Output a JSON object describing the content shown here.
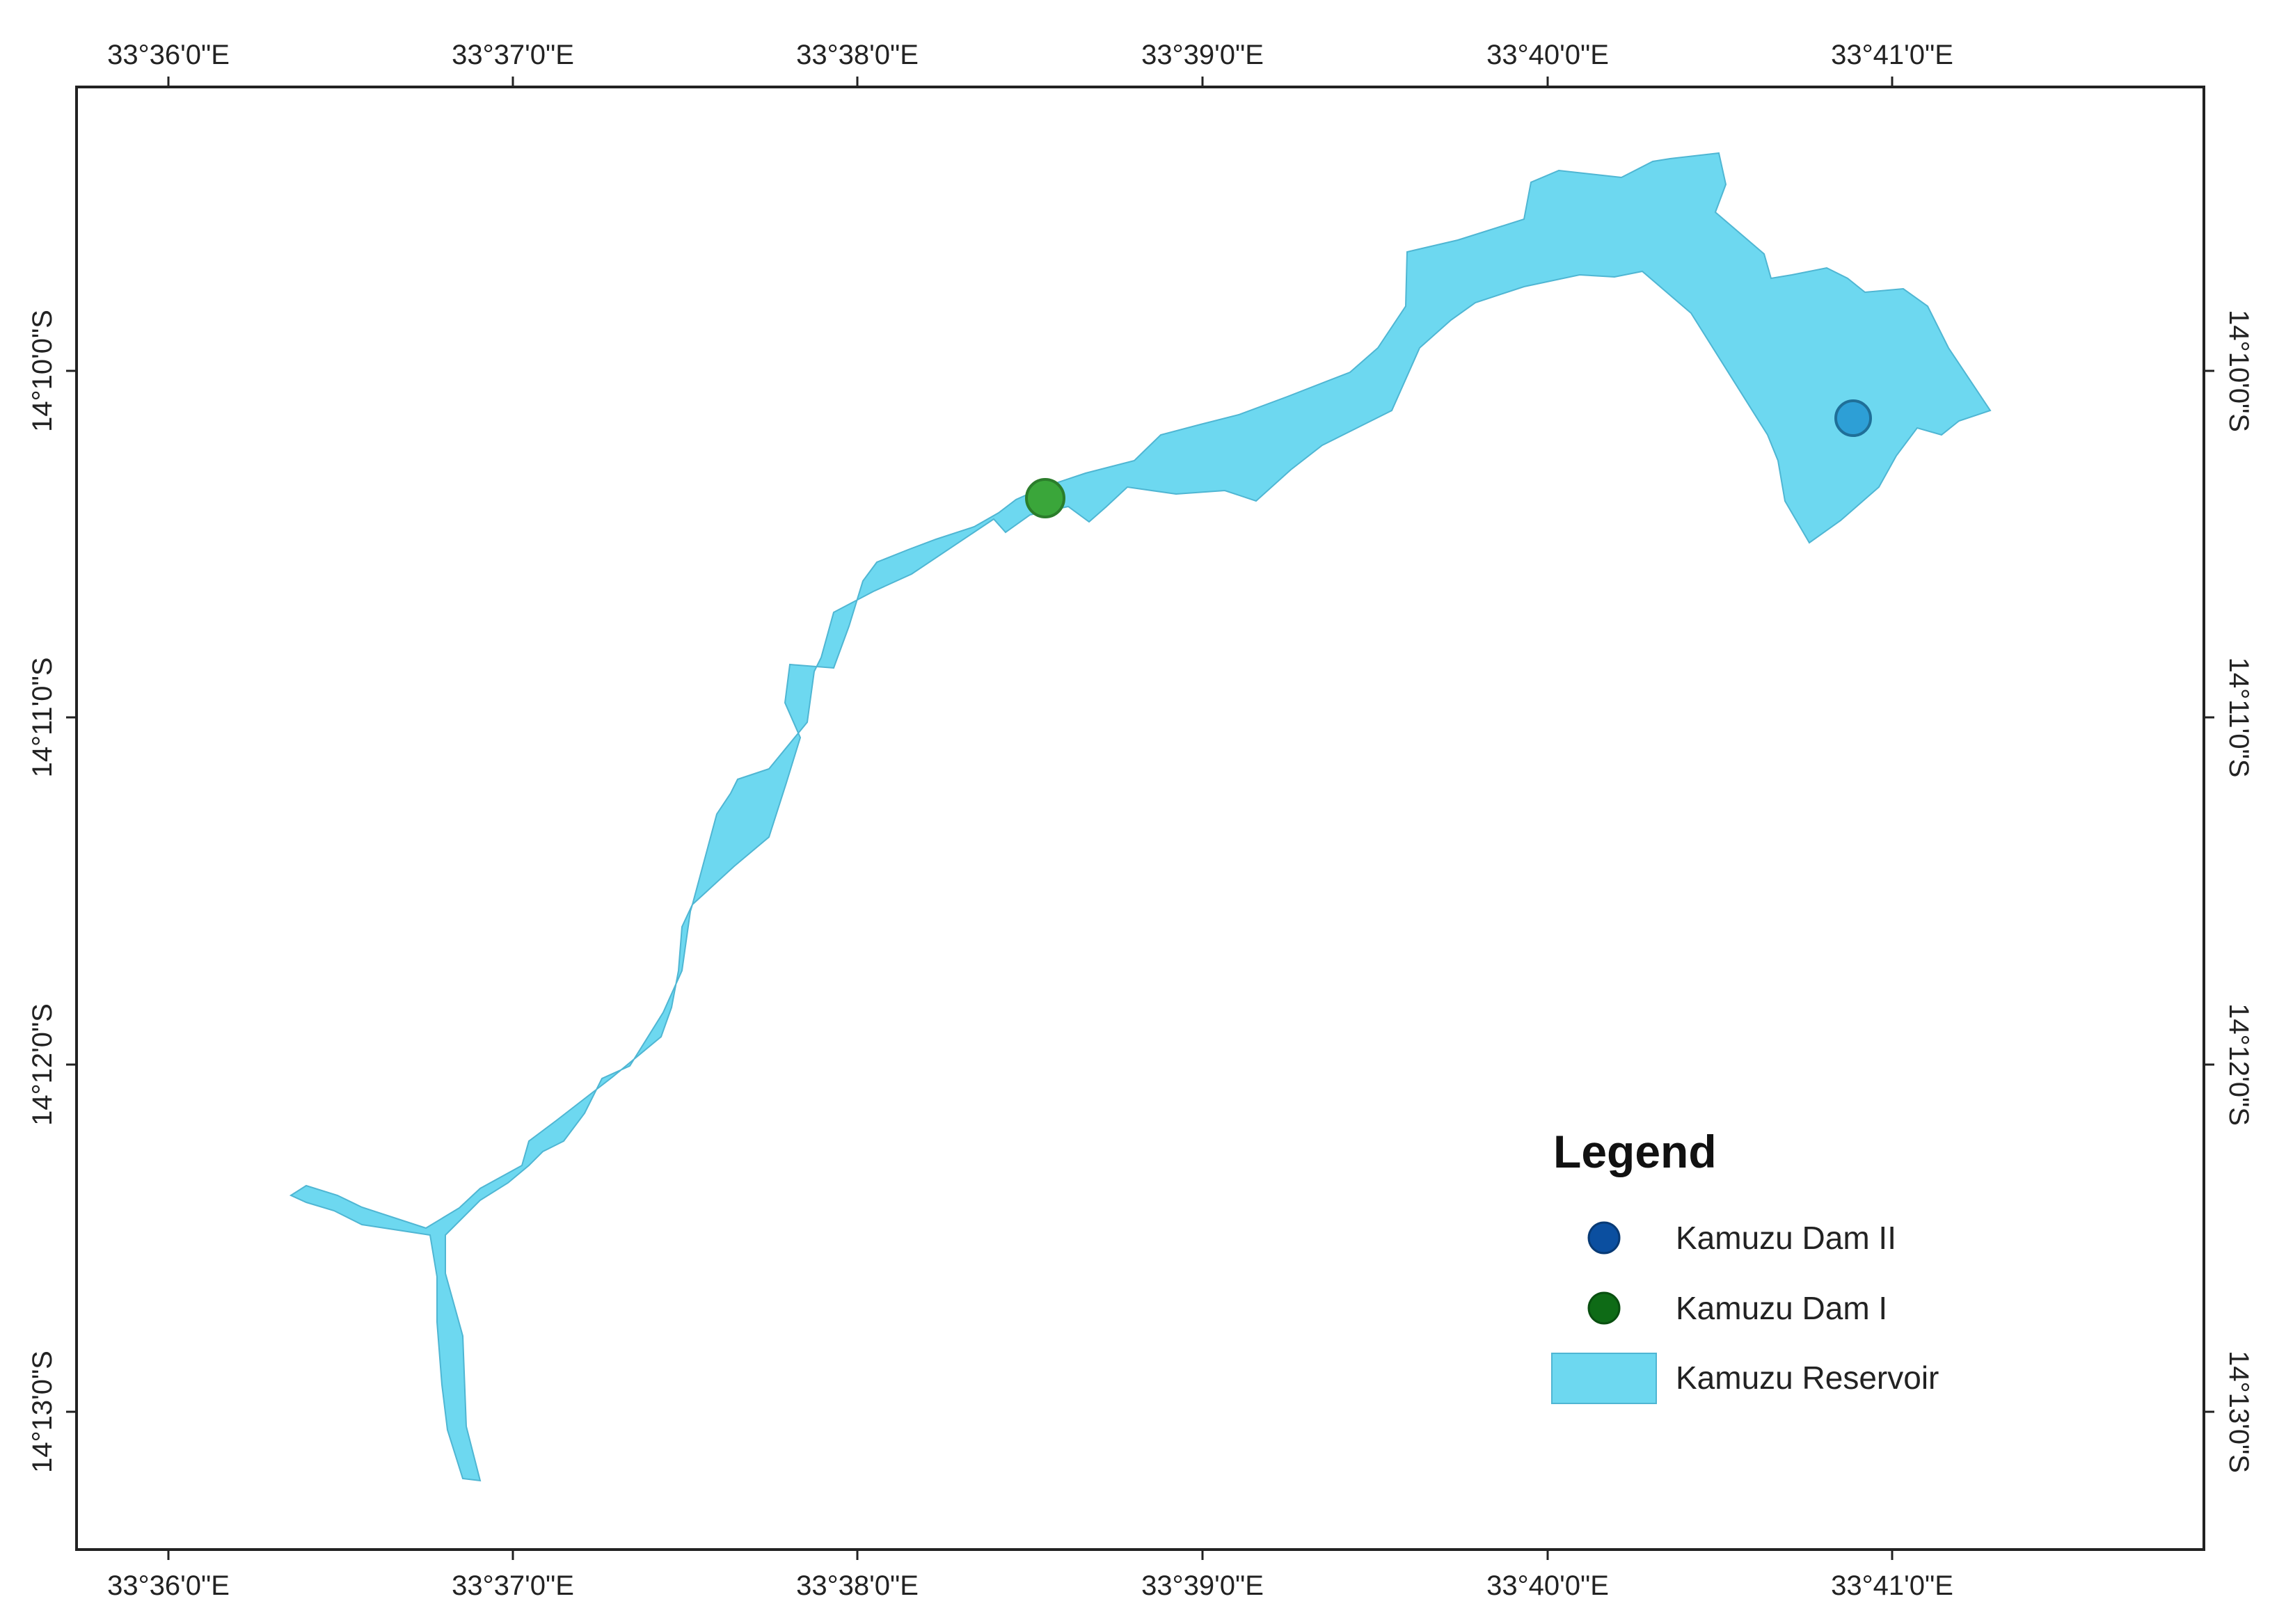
{
  "map": {
    "axes": {
      "top_labels": [
        "33°36'0\"E",
        "33°37'0\"E",
        "33°38'0\"E",
        "33°39'0\"E",
        "33°40'0\"E",
        "33°41'0\"E"
      ],
      "bottom_labels": [
        "33°36'0\"E",
        "33°37'0\"E",
        "33°38'0\"E",
        "33°39'0\"E",
        "33°40'0\"E",
        "33°41'0\"E"
      ],
      "left_labels": [
        "14°10'0\"S",
        "14°11'0\"S",
        "14°12'0\"S",
        "14°13'0\"S"
      ],
      "right_labels": [
        "14°10'0\"S",
        "14°11'0\"S",
        "14°12'0\"S",
        "14°13'0\"S"
      ]
    },
    "features": {
      "dam_ii": {
        "name": "Kamuzu Dam II",
        "color": "#2d9fd6",
        "legend_color": "#0b4fa0"
      },
      "dam_i": {
        "name": "Kamuzu Dam I",
        "color": "#3aa63a",
        "legend_color": "#0e6b16"
      },
      "reservoir": {
        "name": "Kamuzu Reservoir",
        "color": "#6dd8f0"
      }
    },
    "legend": {
      "title": "Legend",
      "items": [
        {
          "label": "Kamuzu Dam II",
          "symbol": "circle",
          "color": "#0b4fa0"
        },
        {
          "label": "Kamuzu Dam I",
          "symbol": "circle",
          "color": "#0e6b16"
        },
        {
          "label": "Kamuzu Reservoir",
          "symbol": "rect",
          "color": "#6dd8f0"
        }
      ]
    }
  }
}
